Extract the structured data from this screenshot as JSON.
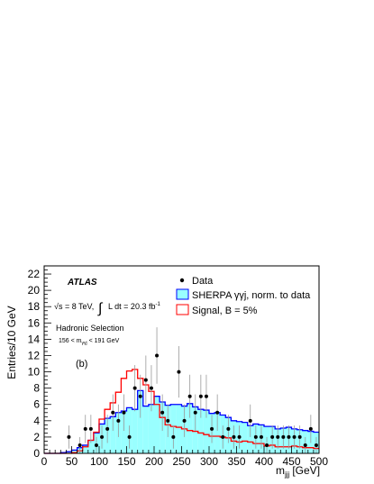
{
  "chart_data": {
    "type": "histogram",
    "xlabel": "m",
    "xlabel_sub": "jjj",
    "xlabel_unit": "[GeV]",
    "ylabel": "Entries/10 GeV",
    "xlim": [
      0,
      500
    ],
    "ylim": [
      0,
      23
    ],
    "xticks": [
      0,
      50,
      100,
      150,
      200,
      250,
      300,
      350,
      400,
      450,
      500
    ],
    "yticks": [
      0,
      2,
      4,
      6,
      8,
      10,
      12,
      14,
      16,
      18,
      20,
      22
    ],
    "bin_width": 10,
    "bin_edges_start": 0,
    "legend": [
      {
        "key": "data",
        "label": "Data"
      },
      {
        "key": "sherpa",
        "label": "SHERPA γγj, norm. to data"
      },
      {
        "key": "signal",
        "label": "Signal, B = 5%"
      }
    ],
    "colors": {
      "sherpa_fill": "#99ffff",
      "sherpa_line": "#0000ff",
      "signal_line": "#ff0000",
      "data": "#000000",
      "error": "#999999"
    },
    "sherpa": [
      0,
      0,
      0,
      0.1,
      0.2,
      0.4,
      0.7,
      1.0,
      1.6,
      2.5,
      3.6,
      4.3,
      4.5,
      5.0,
      5.2,
      5.6,
      5.4,
      7.7,
      5.8,
      6.0,
      7.0,
      6.3,
      5.9,
      6.0,
      6.0,
      5.8,
      6.1,
      5.7,
      5.4,
      5.3,
      4.9,
      5.0,
      4.7,
      4.4,
      4.0,
      3.9,
      3.8,
      3.4,
      3.6,
      3.5,
      3.3,
      3.3,
      3.0,
      3.1,
      3.2,
      3.0,
      2.9,
      2.8,
      2.7,
      2.6
    ],
    "signal": [
      0,
      0,
      0,
      0,
      0,
      0.1,
      0.3,
      0.8,
      1.6,
      2.6,
      4.2,
      5.4,
      6.2,
      7.5,
      9.2,
      10.1,
      10.3,
      9.2,
      8.4,
      7.6,
      6.0,
      4.4,
      3.5,
      3.3,
      3.2,
      3.0,
      2.8,
      2.7,
      2.5,
      2.3,
      2.1,
      2.1,
      2.0,
      1.9,
      1.5,
      1.4,
      1.5,
      1.4,
      1.2,
      1.2,
      0.9,
      1.0,
      0.8,
      0.8,
      0.8,
      0.9,
      0.8,
      0.7,
      0.7,
      0.6
    ],
    "data": [
      {
        "x": 45,
        "y": 2
      },
      {
        "x": 65,
        "y": 1
      },
      {
        "x": 75,
        "y": 3
      },
      {
        "x": 85,
        "y": 3
      },
      {
        "x": 95,
        "y": 1
      },
      {
        "x": 105,
        "y": 2
      },
      {
        "x": 115,
        "y": 3
      },
      {
        "x": 125,
        "y": 5
      },
      {
        "x": 135,
        "y": 4
      },
      {
        "x": 145,
        "y": 5
      },
      {
        "x": 155,
        "y": 2
      },
      {
        "x": 165,
        "y": 8
      },
      {
        "x": 175,
        "y": 7
      },
      {
        "x": 185,
        "y": 9
      },
      {
        "x": 195,
        "y": 8
      },
      {
        "x": 205,
        "y": 12
      },
      {
        "x": 215,
        "y": 5
      },
      {
        "x": 225,
        "y": 4
      },
      {
        "x": 235,
        "y": 2
      },
      {
        "x": 245,
        "y": 10
      },
      {
        "x": 255,
        "y": 4
      },
      {
        "x": 265,
        "y": 7
      },
      {
        "x": 275,
        "y": 5
      },
      {
        "x": 285,
        "y": 7
      },
      {
        "x": 295,
        "y": 7
      },
      {
        "x": 305,
        "y": 3
      },
      {
        "x": 315,
        "y": 5
      },
      {
        "x": 325,
        "y": 2
      },
      {
        "x": 335,
        "y": 3
      },
      {
        "x": 345,
        "y": 2
      },
      {
        "x": 355,
        "y": 2
      },
      {
        "x": 375,
        "y": 4
      },
      {
        "x": 385,
        "y": 2
      },
      {
        "x": 395,
        "y": 2
      },
      {
        "x": 405,
        "y": 1
      },
      {
        "x": 415,
        "y": 2
      },
      {
        "x": 425,
        "y": 2
      },
      {
        "x": 435,
        "y": 2
      },
      {
        "x": 445,
        "y": 2
      },
      {
        "x": 455,
        "y": 2
      },
      {
        "x": 465,
        "y": 2
      },
      {
        "x": 475,
        "y": 1
      },
      {
        "x": 485,
        "y": 3
      },
      {
        "x": 495,
        "y": 1
      }
    ]
  },
  "annotations": {
    "atlas": "ATLAS",
    "energy": "√s = 8 TeV,",
    "lumi": "L dt = 20.3 fb",
    "lumi_sup": "-1",
    "selection": "Hadronic Selection",
    "mass_window": "156 < m",
    "mass_window_sub": "γγj",
    "mass_window_end": "< 191 GeV",
    "panel": "(b)"
  }
}
